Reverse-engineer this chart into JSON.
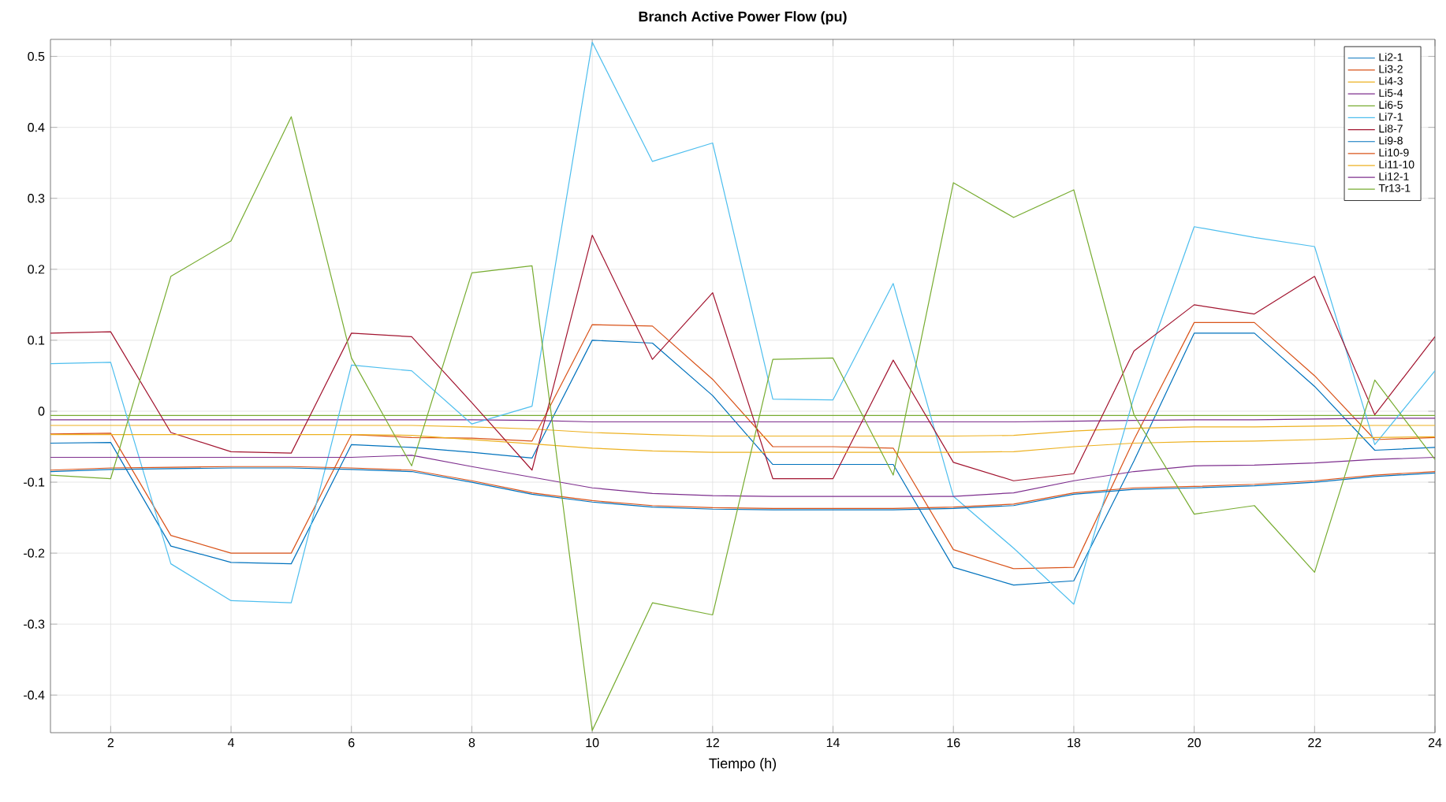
{
  "chart_data": {
    "type": "line",
    "title": "Branch Active Power Flow (pu)",
    "xlabel": "Tiempo (h)",
    "x": [
      1,
      2,
      3,
      4,
      5,
      6,
      7,
      8,
      9,
      10,
      11,
      12,
      13,
      14,
      15,
      16,
      17,
      18,
      19,
      20,
      21,
      22,
      23,
      24
    ],
    "xlim": [
      1,
      24
    ],
    "ylim": [
      -0.453,
      0.524
    ],
    "xticks": [
      2,
      4,
      6,
      8,
      10,
      12,
      14,
      16,
      18,
      20,
      22,
      24
    ],
    "yticks": [
      -0.4,
      -0.3,
      -0.2,
      -0.1,
      0,
      0.1,
      0.2,
      0.3,
      0.4,
      0.5
    ],
    "grid": true,
    "legend": "top right",
    "marker": "none",
    "line_style": "solid",
    "series": [
      {
        "name": "Li2-1",
        "color": "#0072bd",
        "values": [
          -0.045,
          -0.044,
          -0.19,
          -0.213,
          -0.215,
          -0.047,
          -0.051,
          -0.058,
          -0.066,
          0.1,
          0.096,
          0.022,
          -0.075,
          -0.075,
          -0.075,
          -0.22,
          -0.245,
          -0.239,
          -0.07,
          0.11,
          0.11,
          0.035,
          -0.055,
          -0.051
        ]
      },
      {
        "name": "Li3-2",
        "color": "#d95319",
        "values": [
          -0.032,
          -0.031,
          -0.175,
          -0.2,
          -0.2,
          -0.033,
          -0.037,
          -0.038,
          -0.042,
          0.122,
          0.12,
          0.045,
          -0.05,
          -0.05,
          -0.052,
          -0.195,
          -0.222,
          -0.22,
          -0.04,
          0.125,
          0.125,
          0.05,
          -0.04,
          -0.037
        ]
      },
      {
        "name": "Li4-3",
        "color": "#edb120",
        "values": [
          -0.02,
          -0.02,
          -0.02,
          -0.02,
          -0.02,
          -0.02,
          -0.02,
          -0.022,
          -0.025,
          -0.03,
          -0.033,
          -0.035,
          -0.035,
          -0.035,
          -0.035,
          -0.035,
          -0.034,
          -0.028,
          -0.024,
          -0.022,
          -0.022,
          -0.021,
          -0.02,
          -0.02
        ]
      },
      {
        "name": "Li5-4",
        "color": "#7e2f8e",
        "values": [
          -0.012,
          -0.012,
          -0.012,
          -0.012,
          -0.012,
          -0.012,
          -0.012,
          -0.012,
          -0.013,
          -0.015,
          -0.015,
          -0.015,
          -0.015,
          -0.015,
          -0.015,
          -0.015,
          -0.015,
          -0.014,
          -0.013,
          -0.012,
          -0.012,
          -0.011,
          -0.01,
          -0.01
        ]
      },
      {
        "name": "Li6-5",
        "color": "#77ac30",
        "values": [
          -0.006,
          -0.006,
          -0.006,
          -0.006,
          -0.006,
          -0.006,
          -0.006,
          -0.006,
          -0.006,
          -0.006,
          -0.006,
          -0.006,
          -0.006,
          -0.006,
          -0.006,
          -0.006,
          -0.006,
          -0.006,
          -0.006,
          -0.006,
          -0.006,
          -0.006,
          -0.006,
          -0.006
        ]
      },
      {
        "name": "Li7-1",
        "color": "#4dbeee",
        "values": [
          0.067,
          0.069,
          -0.215,
          -0.267,
          -0.27,
          0.065,
          0.057,
          -0.018,
          0.007,
          0.52,
          0.352,
          0.378,
          0.017,
          0.016,
          0.18,
          -0.12,
          -0.193,
          -0.272,
          0.02,
          0.26,
          0.245,
          0.232,
          -0.047,
          0.057
        ]
      },
      {
        "name": "Li8-7",
        "color": "#a2142f",
        "values": [
          0.11,
          0.112,
          -0.03,
          -0.057,
          -0.059,
          0.11,
          0.105,
          0.012,
          -0.083,
          0.248,
          0.073,
          0.167,
          -0.095,
          -0.095,
          0.072,
          -0.072,
          -0.098,
          -0.088,
          0.085,
          0.15,
          0.137,
          0.19,
          -0.005,
          0.105
        ]
      },
      {
        "name": "Li9-8",
        "color": "#0072bd",
        "values": [
          -0.085,
          -0.082,
          -0.081,
          -0.08,
          -0.08,
          -0.082,
          -0.085,
          -0.1,
          -0.117,
          -0.128,
          -0.135,
          -0.138,
          -0.139,
          -0.139,
          -0.139,
          -0.137,
          -0.133,
          -0.117,
          -0.11,
          -0.108,
          -0.105,
          -0.1,
          -0.092,
          -0.087
        ]
      },
      {
        "name": "Li10-9",
        "color": "#d95319",
        "values": [
          -0.083,
          -0.08,
          -0.079,
          -0.078,
          -0.078,
          -0.08,
          -0.083,
          -0.098,
          -0.115,
          -0.126,
          -0.133,
          -0.136,
          -0.137,
          -0.137,
          -0.137,
          -0.135,
          -0.131,
          -0.115,
          -0.108,
          -0.106,
          -0.103,
          -0.098,
          -0.09,
          -0.085
        ]
      },
      {
        "name": "Li11-10",
        "color": "#edb120",
        "values": [
          -0.033,
          -0.033,
          -0.033,
          -0.033,
          -0.033,
          -0.033,
          -0.034,
          -0.04,
          -0.046,
          -0.052,
          -0.056,
          -0.058,
          -0.058,
          -0.058,
          -0.058,
          -0.058,
          -0.057,
          -0.05,
          -0.045,
          -0.043,
          -0.042,
          -0.04,
          -0.037,
          -0.036
        ]
      },
      {
        "name": "Li12-1",
        "color": "#7e2f8e",
        "values": [
          -0.065,
          -0.065,
          -0.065,
          -0.065,
          -0.065,
          -0.065,
          -0.062,
          -0.078,
          -0.093,
          -0.108,
          -0.116,
          -0.119,
          -0.12,
          -0.12,
          -0.12,
          -0.12,
          -0.115,
          -0.098,
          -0.085,
          -0.077,
          -0.076,
          -0.073,
          -0.068,
          -0.065
        ]
      },
      {
        "name": "Tr13-1",
        "color": "#77ac30",
        "values": [
          -0.09,
          -0.095,
          0.19,
          0.24,
          0.415,
          0.075,
          -0.077,
          0.195,
          0.205,
          -0.45,
          -0.27,
          -0.287,
          0.073,
          0.075,
          -0.09,
          0.322,
          0.273,
          0.312,
          -0.005,
          -0.145,
          -0.133,
          -0.227,
          0.044,
          -0.068
        ]
      }
    ]
  }
}
